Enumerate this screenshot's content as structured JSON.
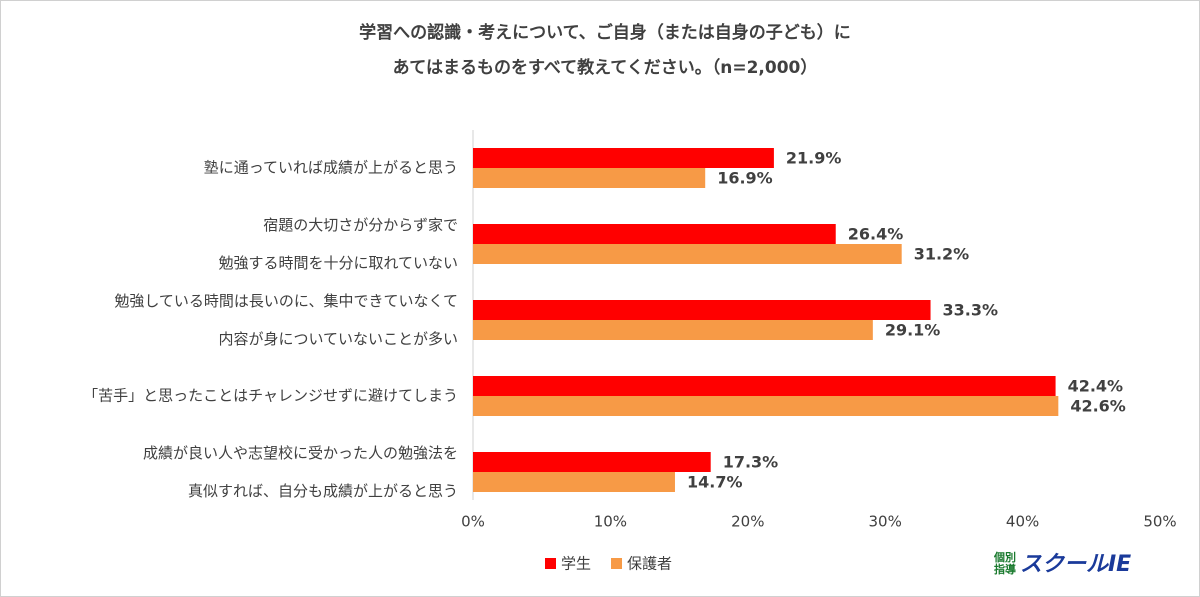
{
  "chart_data": {
    "type": "hbar",
    "title": "学習への認識・考えについて、ご自身（または自身の子ども）に\nあてはまるものをすべて教えてください。（n=2,000）",
    "categories": [
      "塾に通っていれば成績が上がると思う",
      "宿題の大切さが分からず家で\n勉強する時間を十分に取れていない",
      "勉強している時間は長いのに、集中できていなくて\n内容が身についていないことが多い",
      "「苦手」と思ったことはチャレンジせずに避けてしまう",
      "成績が良い人や志望校に受かった人の勉強法を\n真似すれば、自分も成績が上がると思う"
    ],
    "series": [
      {
        "name": "学生",
        "color": "#ff0000",
        "values": [
          21.9,
          26.4,
          33.3,
          42.4,
          17.3
        ],
        "value_labels": [
          "21.9%",
          "26.4%",
          "33.3%",
          "42.4%",
          "17.3%"
        ]
      },
      {
        "name": "保護者",
        "color": "#f79a46",
        "values": [
          16.9,
          31.2,
          29.1,
          42.6,
          14.7
        ],
        "value_labels": [
          "16.9%",
          "31.2%",
          "29.1%",
          "42.6%",
          "14.7%"
        ]
      }
    ],
    "xlim": [
      0,
      50
    ],
    "xticks": [
      {
        "value": 0,
        "label": "0%"
      },
      {
        "value": 10,
        "label": "10%"
      },
      {
        "value": 20,
        "label": "20%"
      },
      {
        "value": 30,
        "label": "30%"
      },
      {
        "value": 40,
        "label": "40%"
      },
      {
        "value": 50,
        "label": "50%"
      }
    ],
    "legend": "bottom",
    "logo": {
      "top": "個別\n指導",
      "main": "スクールIE"
    }
  }
}
